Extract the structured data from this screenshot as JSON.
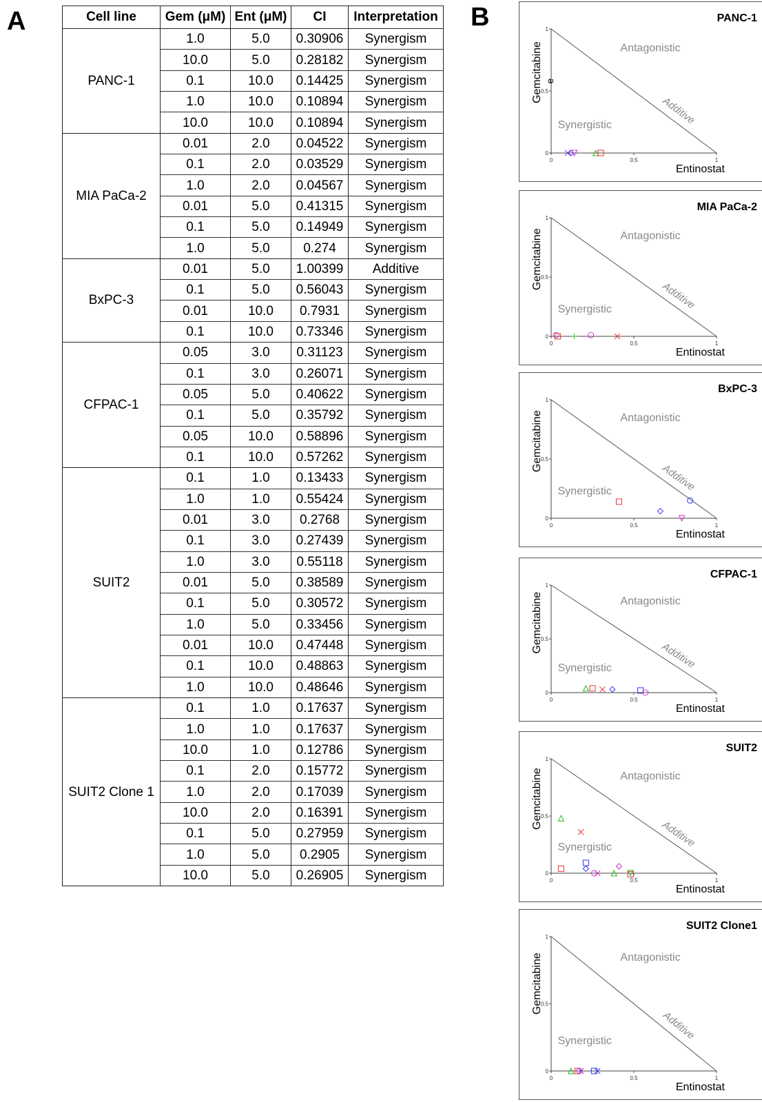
{
  "panel_a_label": "A",
  "panel_b_label": "B",
  "table": {
    "headers": [
      "Cell line",
      "Gem (μM)",
      "Ent (μM)",
      "CI",
      "Interpretation"
    ],
    "groups": [
      {
        "cell_line": "PANC-1",
        "rows": [
          [
            "1.0",
            "5.0",
            "0.30906",
            "Synergism"
          ],
          [
            "10.0",
            "5.0",
            "0.28182",
            "Synergism"
          ],
          [
            "0.1",
            "10.0",
            "0.14425",
            "Synergism"
          ],
          [
            "1.0",
            "10.0",
            "0.10894",
            "Synergism"
          ],
          [
            "10.0",
            "10.0",
            "0.10894",
            "Synergism"
          ]
        ]
      },
      {
        "cell_line": "MIA PaCa-2",
        "rows": [
          [
            "0.01",
            "2.0",
            "0.04522",
            "Synergism"
          ],
          [
            "0.1",
            "2.0",
            "0.03529",
            "Synergism"
          ],
          [
            "1.0",
            "2.0",
            "0.04567",
            "Synergism"
          ],
          [
            "0.01",
            "5.0",
            "0.41315",
            "Synergism"
          ],
          [
            "0.1",
            "5.0",
            "0.14949",
            "Synergism"
          ],
          [
            "1.0",
            "5.0",
            "0.274",
            "Synergism"
          ]
        ]
      },
      {
        "cell_line": "BxPC-3",
        "rows": [
          [
            "0.01",
            "5.0",
            "1.00399",
            "Additive"
          ],
          [
            "0.1",
            "5.0",
            "0.56043",
            "Synergism"
          ],
          [
            "0.01",
            "10.0",
            "0.7931",
            "Synergism"
          ],
          [
            "0.1",
            "10.0",
            "0.73346",
            "Synergism"
          ]
        ]
      },
      {
        "cell_line": "CFPAC-1",
        "rows": [
          [
            "0.05",
            "3.0",
            "0.31123",
            "Synergism"
          ],
          [
            "0.1",
            "3.0",
            "0.26071",
            "Synergism"
          ],
          [
            "0.05",
            "5.0",
            "0.40622",
            "Synergism"
          ],
          [
            "0.1",
            "5.0",
            "0.35792",
            "Synergism"
          ],
          [
            "0.05",
            "10.0",
            "0.58896",
            "Synergism"
          ],
          [
            "0.1",
            "10.0",
            "0.57262",
            "Synergism"
          ]
        ]
      },
      {
        "cell_line": "SUIT2",
        "rows": [
          [
            "0.1",
            "1.0",
            "0.13433",
            "Synergism"
          ],
          [
            "1.0",
            "1.0",
            "0.55424",
            "Synergism"
          ],
          [
            "0.01",
            "3.0",
            "0.2768",
            "Synergism"
          ],
          [
            "0.1",
            "3.0",
            "0.27439",
            "Synergism"
          ],
          [
            "1.0",
            "3.0",
            "0.55118",
            "Synergism"
          ],
          [
            "0.01",
            "5.0",
            "0.38589",
            "Synergism"
          ],
          [
            "0.1",
            "5.0",
            "0.30572",
            "Synergism"
          ],
          [
            "1.0",
            "5.0",
            "0.33456",
            "Synergism"
          ],
          [
            "0.01",
            "10.0",
            "0.47448",
            "Synergism"
          ],
          [
            "0.1",
            "10.0",
            "0.48863",
            "Synergism"
          ],
          [
            "1.0",
            "10.0",
            "0.48646",
            "Synergism"
          ]
        ]
      },
      {
        "cell_line": "SUIT2 Clone 1",
        "rows": [
          [
            "0.1",
            "1.0",
            "0.17637",
            "Synergism"
          ],
          [
            "1.0",
            "1.0",
            "0.17637",
            "Synergism"
          ],
          [
            "10.0",
            "1.0",
            "0.12786",
            "Synergism"
          ],
          [
            "0.1",
            "2.0",
            "0.15772",
            "Synergism"
          ],
          [
            "1.0",
            "2.0",
            "0.17039",
            "Synergism"
          ],
          [
            "10.0",
            "2.0",
            "0.16391",
            "Synergism"
          ],
          [
            "0.1",
            "5.0",
            "0.27959",
            "Synergism"
          ],
          [
            "1.0",
            "5.0",
            "0.2905",
            "Synergism"
          ],
          [
            "10.0",
            "5.0",
            "0.26905",
            "Synergism"
          ]
        ]
      }
    ]
  },
  "chart_data": [
    {
      "type": "scatter",
      "title": "PANC-1",
      "xlabel": "Entinostat",
      "ylabel": "Gemcitabine",
      "xlim": [
        0,
        1
      ],
      "ylim": [
        0,
        1
      ],
      "x_ticks": [
        "0",
        "0.5",
        "1"
      ],
      "y_ticks": [
        "0",
        "0.5",
        "1"
      ],
      "region_labels": {
        "antagonistic": "Antagonistic",
        "additive": "Additive",
        "synergistic": "Synergistic"
      },
      "ylabel_extra": "e",
      "points": [
        {
          "x": 0.1,
          "y": 0.0,
          "marker": "x",
          "color": "#8a2be2"
        },
        {
          "x": 0.12,
          "y": 0.0,
          "marker": "diamond",
          "color": "#3333ff"
        },
        {
          "x": 0.14,
          "y": 0.0,
          "marker": "triangle-down",
          "color": "#cc33cc"
        },
        {
          "x": 0.27,
          "y": 0.0,
          "marker": "triangle",
          "color": "#22bb22"
        },
        {
          "x": 0.3,
          "y": 0.0,
          "marker": "square",
          "color": "#ee3333"
        }
      ]
    },
    {
      "type": "scatter",
      "title": "MIA PaCa-2",
      "xlabel": "Entinostat",
      "ylabel": "Gemcitabine",
      "xlim": [
        0,
        1
      ],
      "ylim": [
        0,
        1
      ],
      "x_ticks": [
        "0",
        "0.5",
        "1"
      ],
      "y_ticks": [
        "0",
        "0.5",
        "1"
      ],
      "region_labels": {
        "antagonistic": "Antagonistic",
        "additive": "Additive",
        "synergistic": "Synergistic"
      },
      "points": [
        {
          "x": 0.03,
          "y": 0.01,
          "marker": "circle",
          "color": "#cc33cc"
        },
        {
          "x": 0.04,
          "y": 0.0,
          "marker": "square",
          "color": "#ee3333"
        },
        {
          "x": 0.14,
          "y": 0.0,
          "marker": "plus",
          "color": "#22bb22"
        },
        {
          "x": 0.24,
          "y": 0.01,
          "marker": "circle",
          "color": "#cc33cc"
        },
        {
          "x": 0.4,
          "y": 0.0,
          "marker": "x",
          "color": "#ee3333"
        }
      ]
    },
    {
      "type": "scatter",
      "title": "BxPC-3",
      "xlabel": "Entinostat",
      "ylabel": "Gemcitabine",
      "xlim": [
        0,
        1
      ],
      "ylim": [
        0,
        1
      ],
      "x_ticks": [
        "0",
        "0.5",
        "1"
      ],
      "y_ticks": [
        "0",
        "0.5",
        "1"
      ],
      "region_labels": {
        "antagonistic": "Antagonistic",
        "additive": "Additive",
        "synergistic": "Synergistic"
      },
      "points": [
        {
          "x": 0.41,
          "y": 0.14,
          "marker": "square",
          "color": "#ee3333"
        },
        {
          "x": 0.66,
          "y": 0.06,
          "marker": "diamond",
          "color": "#3333ff"
        },
        {
          "x": 0.84,
          "y": 0.15,
          "marker": "circle",
          "color": "#3333ff"
        },
        {
          "x": 0.79,
          "y": 0.0,
          "marker": "triangle-down",
          "color": "#cc33cc"
        }
      ]
    },
    {
      "type": "scatter",
      "title": "CFPAC-1",
      "xlabel": "Entinostat",
      "ylabel": "Gemcitabine",
      "xlim": [
        0,
        1
      ],
      "ylim": [
        0,
        1
      ],
      "x_ticks": [
        "0",
        "0.5",
        "1"
      ],
      "y_ticks": [
        "0",
        "0.5",
        "1"
      ],
      "region_labels": {
        "antagonistic": "Antagonistic",
        "additive": "Additive",
        "synergistic": "Synergistic"
      },
      "points": [
        {
          "x": 0.21,
          "y": 0.04,
          "marker": "triangle",
          "color": "#22bb22"
        },
        {
          "x": 0.25,
          "y": 0.04,
          "marker": "square",
          "color": "#ee3333"
        },
        {
          "x": 0.31,
          "y": 0.03,
          "marker": "x",
          "color": "#ee3333"
        },
        {
          "x": 0.37,
          "y": 0.03,
          "marker": "diamond",
          "color": "#3333ff"
        },
        {
          "x": 0.54,
          "y": 0.02,
          "marker": "square",
          "color": "#3333ff"
        },
        {
          "x": 0.57,
          "y": 0.0,
          "marker": "circle",
          "color": "#cc33cc"
        }
      ]
    },
    {
      "type": "scatter",
      "title": "SUIT2",
      "xlabel": "Entinostat",
      "ylabel": "Gemcitabine",
      "xlim": [
        0,
        1
      ],
      "ylim": [
        0,
        1
      ],
      "x_ticks": [
        "0",
        "0.5",
        "1"
      ],
      "y_ticks": [
        "0",
        "0.5",
        "1"
      ],
      "region_labels": {
        "antagonistic": "Antagonistic",
        "additive": "Additive",
        "synergistic": "Synergistic"
      },
      "points": [
        {
          "x": 0.06,
          "y": 0.48,
          "marker": "triangle",
          "color": "#22bb22"
        },
        {
          "x": 0.18,
          "y": 0.36,
          "marker": "x",
          "color": "#ee3333"
        },
        {
          "x": 0.06,
          "y": 0.04,
          "marker": "square",
          "color": "#ee3333"
        },
        {
          "x": 0.21,
          "y": 0.09,
          "marker": "square",
          "color": "#3333ff"
        },
        {
          "x": 0.21,
          "y": 0.04,
          "marker": "diamond",
          "color": "#3333ff"
        },
        {
          "x": 0.26,
          "y": 0.0,
          "marker": "circle",
          "color": "#cc33cc"
        },
        {
          "x": 0.28,
          "y": 0.0,
          "marker": "x",
          "color": "#cc33cc"
        },
        {
          "x": 0.38,
          "y": 0.0,
          "marker": "triangle",
          "color": "#22bb22"
        },
        {
          "x": 0.41,
          "y": 0.06,
          "marker": "diamond",
          "color": "#cc33cc"
        },
        {
          "x": 0.48,
          "y": 0.0,
          "marker": "triangle-down",
          "color": "#22bb22"
        },
        {
          "x": 0.48,
          "y": -0.01,
          "marker": "square",
          "color": "#ee3333"
        }
      ]
    },
    {
      "type": "scatter",
      "title": "SUIT2 Clone1",
      "xlabel": "Entinostat",
      "ylabel": "Gemcitabine",
      "xlim": [
        0,
        1
      ],
      "ylim": [
        0,
        1
      ],
      "x_ticks": [
        "0",
        "0.5",
        "1"
      ],
      "y_ticks": [
        "0",
        "0.5",
        "1"
      ],
      "region_labels": {
        "antagonistic": "Antagonistic",
        "additive": "Additive",
        "synergistic": "Synergistic"
      },
      "points": [
        {
          "x": 0.12,
          "y": 0.0,
          "marker": "triangle",
          "color": "#22bb22"
        },
        {
          "x": 0.16,
          "y": 0.0,
          "marker": "square",
          "color": "#ee3333"
        },
        {
          "x": 0.17,
          "y": 0.0,
          "marker": "circle",
          "color": "#cc33cc"
        },
        {
          "x": 0.18,
          "y": 0.0,
          "marker": "x",
          "color": "#8a2be2"
        },
        {
          "x": 0.26,
          "y": 0.0,
          "marker": "square",
          "color": "#3333ff"
        },
        {
          "x": 0.28,
          "y": 0.0,
          "marker": "x",
          "color": "#3333ff"
        }
      ]
    }
  ]
}
